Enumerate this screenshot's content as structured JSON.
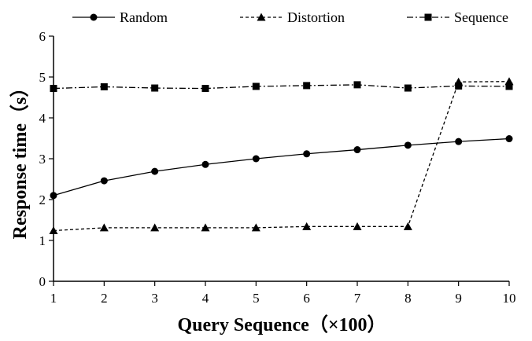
{
  "chart_data": {
    "type": "line",
    "x": [
      1,
      2,
      3,
      4,
      5,
      6,
      7,
      8,
      9,
      10
    ],
    "xlabel": "Query Sequence（×100）",
    "ylabel": "Response time（s）",
    "ylim": [
      0,
      6
    ],
    "yticks": [
      0,
      1,
      2,
      3,
      4,
      5,
      6
    ],
    "grid": false,
    "legend_position": "top",
    "series": [
      {
        "name": "Random",
        "marker": "circle",
        "dash": "solid",
        "values": [
          2.1,
          2.46,
          2.69,
          2.86,
          3.0,
          3.12,
          3.22,
          3.33,
          3.42,
          3.49
        ]
      },
      {
        "name": "Distortion",
        "marker": "triangle",
        "dash": "dashed",
        "values": [
          1.24,
          1.31,
          1.31,
          1.31,
          1.31,
          1.34,
          1.34,
          1.34,
          4.88,
          4.89
        ]
      },
      {
        "name": "Sequence",
        "marker": "square",
        "dash": "dashdot",
        "values": [
          4.72,
          4.76,
          4.73,
          4.72,
          4.77,
          4.79,
          4.81,
          4.73,
          4.78,
          4.77
        ]
      }
    ]
  }
}
